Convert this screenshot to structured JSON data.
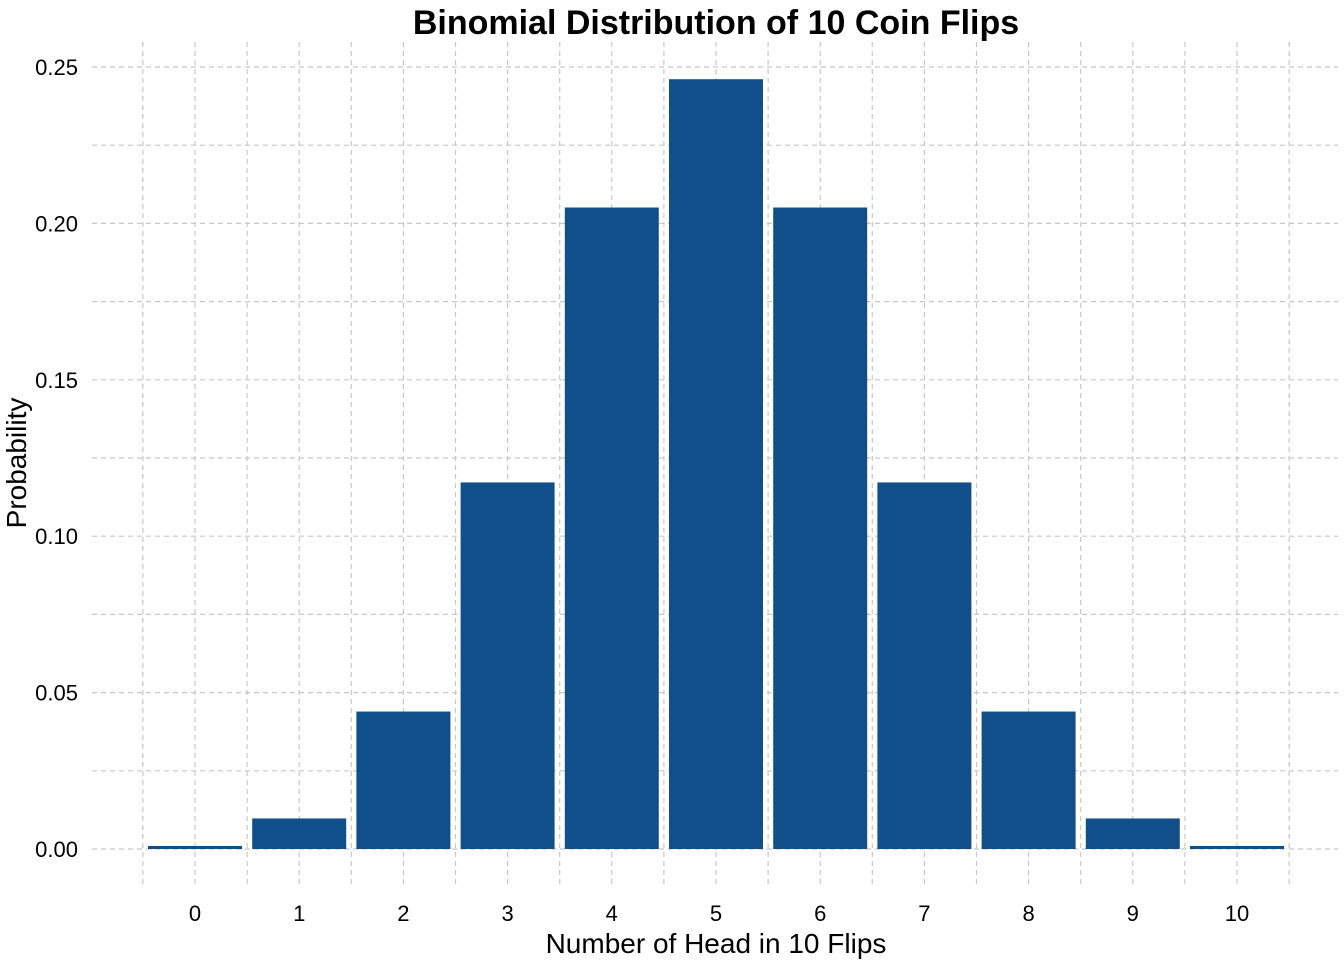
{
  "chart_data": {
    "type": "bar",
    "title": "Binomial Distribution of 10 Coin Flips",
    "xlabel": "Number of Head in 10 Flips",
    "ylabel": "Probability",
    "categories": [
      "0",
      "1",
      "2",
      "3",
      "4",
      "5",
      "6",
      "7",
      "8",
      "9",
      "10"
    ],
    "values": [
      0.000977,
      0.009766,
      0.043945,
      0.117188,
      0.205078,
      0.246094,
      0.205078,
      0.117188,
      0.043945,
      0.009766,
      0.000977
    ],
    "ylim": [
      0,
      0.25
    ],
    "yticks": [
      "0.00",
      "0.05",
      "0.10",
      "0.15",
      "0.20",
      "0.25"
    ],
    "grid": true,
    "legend": "none",
    "bar_color": "#114f8b"
  }
}
